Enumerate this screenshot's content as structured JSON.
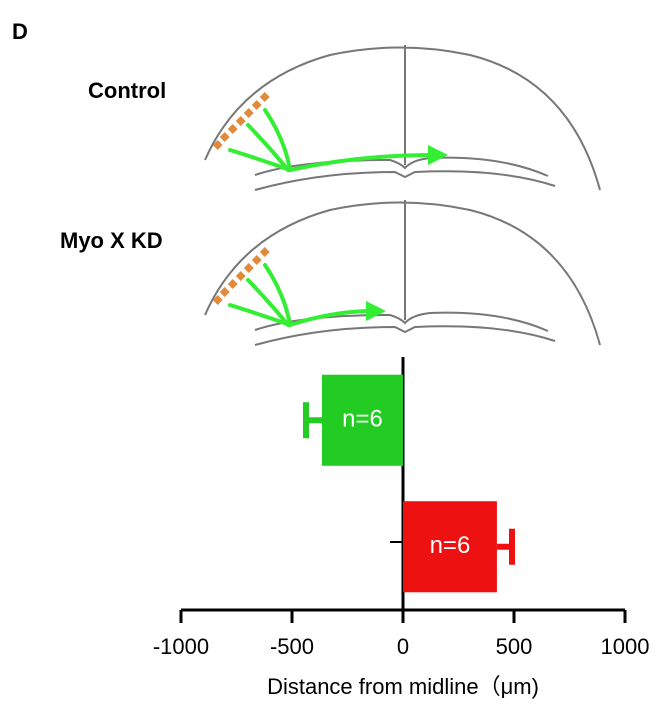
{
  "panel_label": "D",
  "diagrams": [
    {
      "label": "Control"
    },
    {
      "label": "Myo X KD"
    }
  ],
  "chart_data": {
    "type": "bar",
    "orientation": "horizontal",
    "categories": [
      null,
      null
    ],
    "values": [
      -365,
      423
    ],
    "errors": [
      72,
      68
    ],
    "colors": [
      "#22cc22",
      "#ee1111"
    ],
    "annotations": [
      "n=6",
      "n=6"
    ],
    "xlim": [
      -1000,
      1000
    ],
    "xticks": [
      -1000,
      -500,
      0,
      500,
      1000
    ],
    "xlabel": "Distance from midline（μm)"
  }
}
